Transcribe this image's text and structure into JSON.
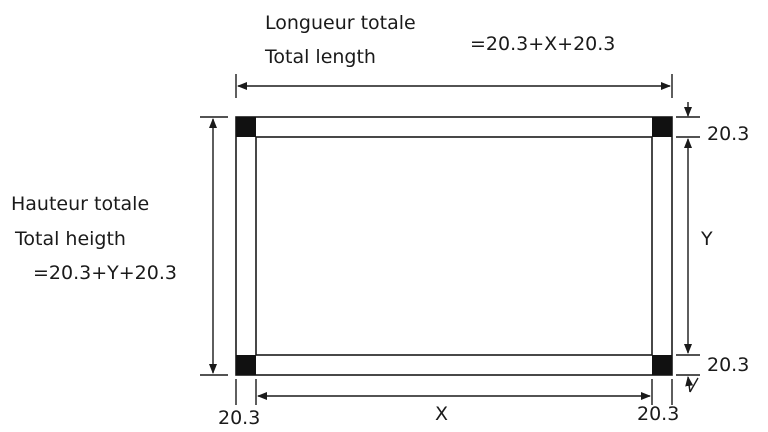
{
  "top": {
    "line1": "Longueur totale",
    "line2": "Total length",
    "formula": "=20.3+X+20.3"
  },
  "left": {
    "line1": "Hauteur totale",
    "line2": "Total heigth",
    "formula": "=20.3+Y+20.3"
  },
  "dims": {
    "right_top": "20.3",
    "right_y": "Y",
    "right_bottom": "20.3",
    "bottom_left": "20.3",
    "bottom_x": "X",
    "bottom_right": "20.3"
  },
  "colors": {
    "line": "#1a1a1a",
    "corner_fill": "#111111"
  }
}
